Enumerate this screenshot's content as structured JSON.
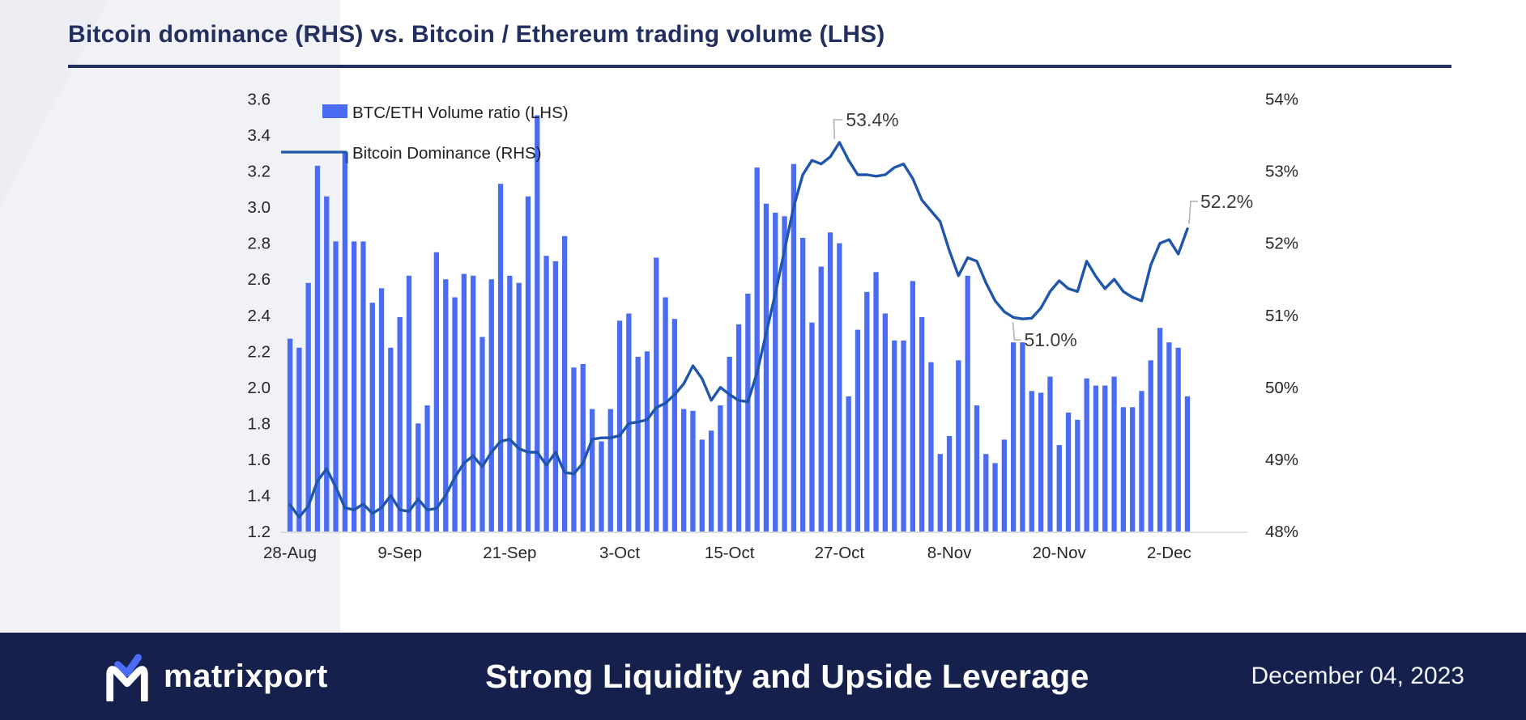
{
  "page": {
    "title": "Bitcoin dominance (RHS) vs. Bitcoin / Ethereum trading volume (LHS)",
    "accent_color": "#232f5e"
  },
  "footer": {
    "brand": "matrixport",
    "headline": "Strong Liquidity and Upside Leverage",
    "date": "December 04, 2023",
    "bg_color": "#16204d",
    "logo_chevron_color": "#4a6cf7"
  },
  "chart_data": {
    "type": "bar+line combo",
    "title": "",
    "legend": [
      {
        "label": "BTC/ETH Volume ratio (LHS)",
        "marker": "bar-swatch",
        "color": "#4a6cf2"
      },
      {
        "label": "Bitcoin Dominance (RHS)",
        "marker": "line-swatch",
        "color": "#1f56ab"
      }
    ],
    "left_axis": {
      "min": 1.2,
      "max": 3.6,
      "step": 0.2
    },
    "right_axis": {
      "min": 48,
      "max": 54,
      "step": 1,
      "suffix": "%"
    },
    "x_ticks": [
      {
        "index": 0,
        "label": "28-Aug"
      },
      {
        "index": 12,
        "label": "9-Sep"
      },
      {
        "index": 24,
        "label": "21-Sep"
      },
      {
        "index": 36,
        "label": "3-Oct"
      },
      {
        "index": 48,
        "label": "15-Oct"
      },
      {
        "index": 60,
        "label": "27-Oct"
      },
      {
        "index": 72,
        "label": "8-Nov"
      },
      {
        "index": 84,
        "label": "20-Nov"
      },
      {
        "index": 96,
        "label": "2-Dec"
      }
    ],
    "series": [
      {
        "name": "BTC/ETH Volume ratio (LHS)",
        "type": "bar",
        "axis": "left",
        "color": "#4a6cf2",
        "values": [
          2.27,
          2.22,
          2.58,
          3.23,
          3.06,
          2.81,
          3.31,
          2.81,
          2.81,
          2.47,
          2.55,
          2.22,
          2.39,
          2.62,
          1.8,
          1.9,
          2.75,
          2.6,
          2.5,
          2.63,
          2.62,
          2.28,
          2.6,
          3.13,
          2.62,
          2.58,
          3.06,
          3.51,
          2.73,
          2.7,
          2.84,
          2.11,
          2.13,
          1.88,
          1.7,
          1.88,
          2.37,
          2.41,
          2.17,
          2.2,
          2.72,
          2.5,
          2.38,
          1.88,
          1.87,
          1.71,
          1.76,
          1.9,
          2.17,
          2.35,
          2.52,
          3.22,
          3.02,
          2.97,
          2.95,
          3.24,
          2.83,
          2.36,
          2.67,
          2.86,
          2.8,
          1.95,
          2.32,
          2.53,
          2.64,
          2.41,
          2.26,
          2.26,
          2.59,
          2.39,
          2.14,
          1.63,
          1.73,
          2.15,
          2.62,
          1.9,
          1.63,
          1.58,
          1.71,
          2.25,
          2.25,
          1.98,
          1.97,
          2.06,
          1.68,
          1.86,
          1.82,
          2.05,
          2.01,
          2.01,
          2.06,
          1.89,
          1.89,
          1.98,
          2.15,
          2.33,
          2.25,
          2.22,
          1.95
        ]
      },
      {
        "name": "Bitcoin Dominance (RHS)",
        "type": "line",
        "axis": "right",
        "color": "#1f56ab",
        "values": [
          48.37,
          48.2,
          48.35,
          48.7,
          48.87,
          48.62,
          48.33,
          48.3,
          48.38,
          48.25,
          48.33,
          48.5,
          48.3,
          48.28,
          48.45,
          48.3,
          48.32,
          48.5,
          48.75,
          48.95,
          49.05,
          48.9,
          49.1,
          49.25,
          49.28,
          49.15,
          49.1,
          49.1,
          48.92,
          49.1,
          48.82,
          48.8,
          48.95,
          49.28,
          49.3,
          49.3,
          49.33,
          49.5,
          49.52,
          49.55,
          49.72,
          49.78,
          49.9,
          50.05,
          50.3,
          50.12,
          49.82,
          50.0,
          49.9,
          49.82,
          49.8,
          50.2,
          50.75,
          51.3,
          51.9,
          52.5,
          52.95,
          53.15,
          53.1,
          53.2,
          53.4,
          53.15,
          52.95,
          52.95,
          52.93,
          52.95,
          53.05,
          53.1,
          52.9,
          52.6,
          52.45,
          52.3,
          51.9,
          51.55,
          51.8,
          51.75,
          51.45,
          51.2,
          51.05,
          50.97,
          50.95,
          50.96,
          51.1,
          51.33,
          51.48,
          51.37,
          51.33,
          51.75,
          51.54,
          51.37,
          51.5,
          51.33,
          51.25,
          51.2,
          51.7,
          52.0,
          52.05,
          51.85,
          52.2
        ]
      }
    ],
    "annotations": [
      {
        "label": "53.4%",
        "index": 60,
        "value": 53.4,
        "style": "peak"
      },
      {
        "label": "51.0%",
        "index": 80,
        "value": 50.95,
        "style": "trough"
      },
      {
        "label": "52.2%",
        "index": 98,
        "value": 52.2,
        "style": "end"
      }
    ],
    "layout_hints": {
      "grid": "off",
      "legend_position": "top-left-inside",
      "baseline_color": "#d6d6d6"
    }
  }
}
